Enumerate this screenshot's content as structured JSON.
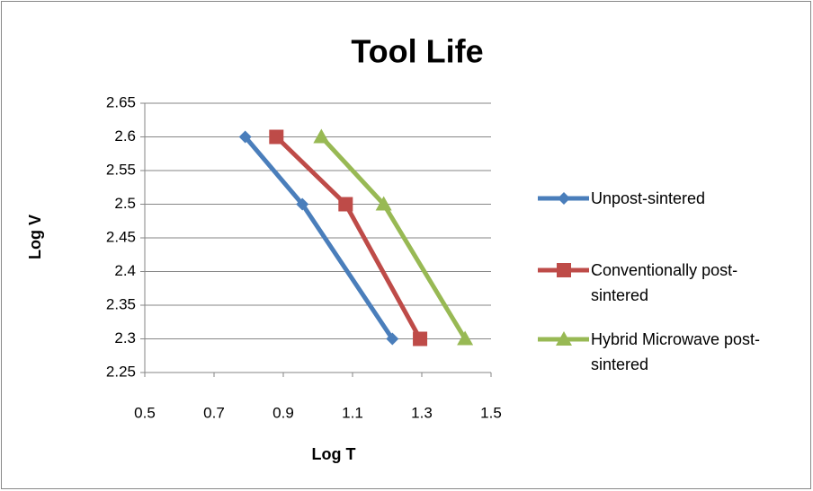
{
  "chart_data": {
    "type": "scatter-line",
    "title": "Tool Life",
    "x_label": "Log T",
    "y_label": "Log V",
    "xlim": [
      0.5,
      1.5
    ],
    "xticks": [
      0.5,
      0.7,
      0.9,
      1.1,
      1.3,
      1.5
    ],
    "ylim": [
      2.25,
      2.65
    ],
    "yticks": [
      2.25,
      2.3,
      2.35,
      2.4,
      2.45,
      2.5,
      2.55,
      2.6,
      2.65
    ],
    "grid": true,
    "legend": "right",
    "series": [
      {
        "name": "Unpost-sintered",
        "color": "#4a7ebb",
        "marker": "diamond",
        "x": [
          0.79,
          0.955,
          1.215
        ],
        "values": [
          2.6,
          2.5,
          2.3
        ]
      },
      {
        "name": "Conventionally post-sintered",
        "color": "#be4b48",
        "marker": "square",
        "x": [
          0.88,
          1.08,
          1.295
        ],
        "values": [
          2.6,
          2.5,
          2.3
        ]
      },
      {
        "name": "Hybrid Microwave post-sintered",
        "color": "#98b954",
        "marker": "triangle",
        "x": [
          1.01,
          1.19,
          1.425
        ],
        "values": [
          2.6,
          2.5,
          2.3
        ]
      }
    ]
  }
}
